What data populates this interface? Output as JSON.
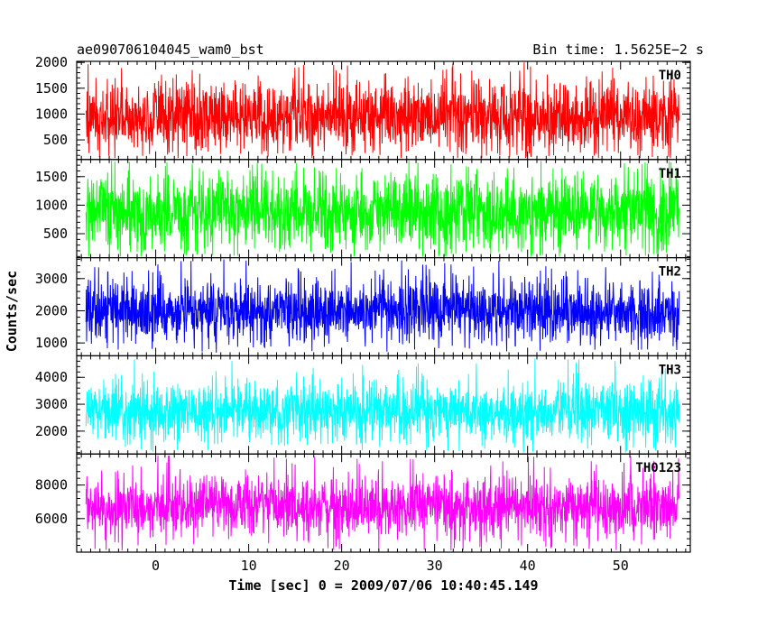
{
  "header": {
    "left_title": "ae090706104045_wam0_bst",
    "right_title": "Bin time: 1.5625E−2 s"
  },
  "chart_data": {
    "type": "line",
    "title": "ae090706104045_wam0_bst",
    "subtitle": "Bin time: 1.5625E−2 s",
    "xlabel": "Time [sec] 0 = 2009/07/06 10:40:45.149",
    "ylabel": "Counts/sec",
    "xlim": [
      -8.5,
      57.5
    ],
    "data_xrange": [
      -7.5,
      56.3
    ],
    "x_ticks": [
      0,
      10,
      20,
      30,
      40,
      50
    ],
    "x_tick_labels": [
      "0",
      "10",
      "20",
      "30",
      "40",
      "50"
    ],
    "grid": false,
    "legend": "none",
    "panels": [
      {
        "name": "TH0",
        "color": "#ff0000",
        "ylim": [
          120,
          2020
        ],
        "y_ticks": [
          500,
          1000,
          1500,
          2000
        ],
        "y_tick_labels": [
          "500",
          "1000",
          "1500",
          "2000"
        ],
        "typical_low": 300,
        "typical_high": 1600,
        "typical_mid": 950,
        "observed_min": 150,
        "observed_max": 2000
      },
      {
        "name": "TH1",
        "color": "#00ff00",
        "ylim": [
          80,
          1800
        ],
        "y_ticks": [
          500,
          1000,
          1500
        ],
        "y_tick_labels": [
          "500",
          "1000",
          "1500"
        ],
        "typical_low": 250,
        "typical_high": 1500,
        "typical_mid": 900,
        "observed_min": 100,
        "observed_max": 1780
      },
      {
        "name": "TH2",
        "color": "#0000ff",
        "ylim": [
          600,
          3650
        ],
        "y_ticks": [
          1000,
          2000,
          3000
        ],
        "y_tick_labels": [
          "1000",
          "2000",
          "3000"
        ],
        "typical_low": 1100,
        "typical_high": 3000,
        "typical_mid": 2000,
        "observed_min": 700,
        "observed_max": 3600
      },
      {
        "name": "TH3",
        "color": "#00ffff",
        "ylim": [
          1150,
          4800
        ],
        "y_ticks": [
          2000,
          3000,
          4000
        ],
        "y_tick_labels": [
          "2000",
          "3000",
          "4000"
        ],
        "typical_low": 1700,
        "typical_high": 3800,
        "typical_mid": 2750,
        "observed_min": 1200,
        "observed_max": 4750
      },
      {
        "name": "TH0123",
        "color": "#ff00ff",
        "ylim": [
          4000,
          9850
        ],
        "y_ticks": [
          6000,
          8000
        ],
        "y_tick_labels": [
          "6000",
          "8000"
        ],
        "typical_low": 5000,
        "typical_high": 8500,
        "typical_mid": 6700,
        "observed_min": 4100,
        "observed_max": 9800
      }
    ]
  }
}
